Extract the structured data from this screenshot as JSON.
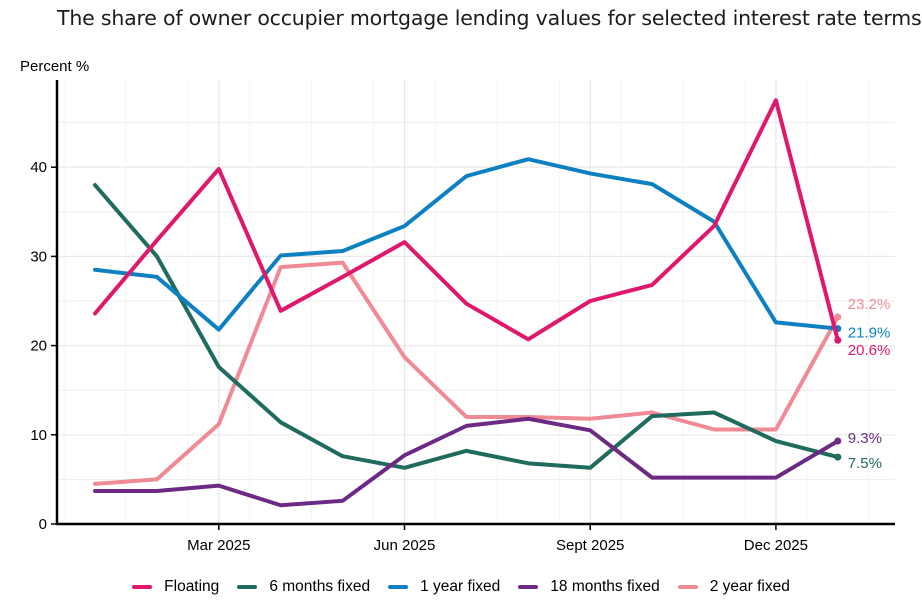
{
  "chart_data": {
    "type": "line",
    "title": "The share of owner occupier mortgage lending values for selected interest rate terms",
    "ylabel": "Percent %",
    "ylim": [
      0,
      48
    ],
    "yticks": [
      0,
      10,
      20,
      30,
      40
    ],
    "x_tick_labels": [
      "Mar 2025",
      "Jun 2025",
      "Sept 2025",
      "Dec 2025"
    ],
    "x_tick_index": [
      2,
      5,
      8,
      11
    ],
    "x": [
      "Jan 2025",
      "Feb 2025",
      "Mar 2025",
      "Apr 2025",
      "May 2025",
      "Jun 2025",
      "Jul 2025",
      "Aug 2025",
      "Sept 2025",
      "Oct 2025",
      "Nov 2025",
      "Dec 2025",
      "Jan 2026"
    ],
    "grid": true,
    "legend_position": "bottom",
    "series": [
      {
        "name": "Floating",
        "color": "#e0186c",
        "end_label": "20.6%",
        "values": [
          23.6,
          31.8,
          39.8,
          23.9,
          27.7,
          31.6,
          24.7,
          20.7,
          25.0,
          26.8,
          33.4,
          47.5,
          20.6
        ]
      },
      {
        "name": "6 months fixed",
        "color": "#1f6b5e",
        "end_label": "7.5%",
        "values": [
          38.0,
          30.0,
          17.6,
          11.4,
          7.6,
          6.3,
          8.2,
          6.8,
          6.3,
          12.1,
          12.5,
          9.3,
          7.5
        ]
      },
      {
        "name": "1 year fixed",
        "color": "#0d80c2",
        "end_label": "21.9%",
        "values": [
          28.5,
          27.7,
          21.8,
          30.1,
          30.6,
          33.4,
          39.0,
          40.9,
          39.3,
          38.1,
          33.9,
          22.6,
          21.9
        ]
      },
      {
        "name": "18 months fixed",
        "color": "#6d2a85",
        "end_label": "9.3%",
        "values": [
          3.7,
          3.7,
          4.3,
          2.1,
          2.6,
          7.7,
          11.0,
          11.8,
          10.5,
          5.2,
          5.2,
          5.2,
          9.3
        ]
      },
      {
        "name": "2 year fixed",
        "color": "#f08a94",
        "end_label": "23.2%",
        "values": [
          4.5,
          5.0,
          11.2,
          28.8,
          29.3,
          18.7,
          12.0,
          12.0,
          11.8,
          12.5,
          10.6,
          10.6,
          23.2
        ]
      }
    ]
  }
}
